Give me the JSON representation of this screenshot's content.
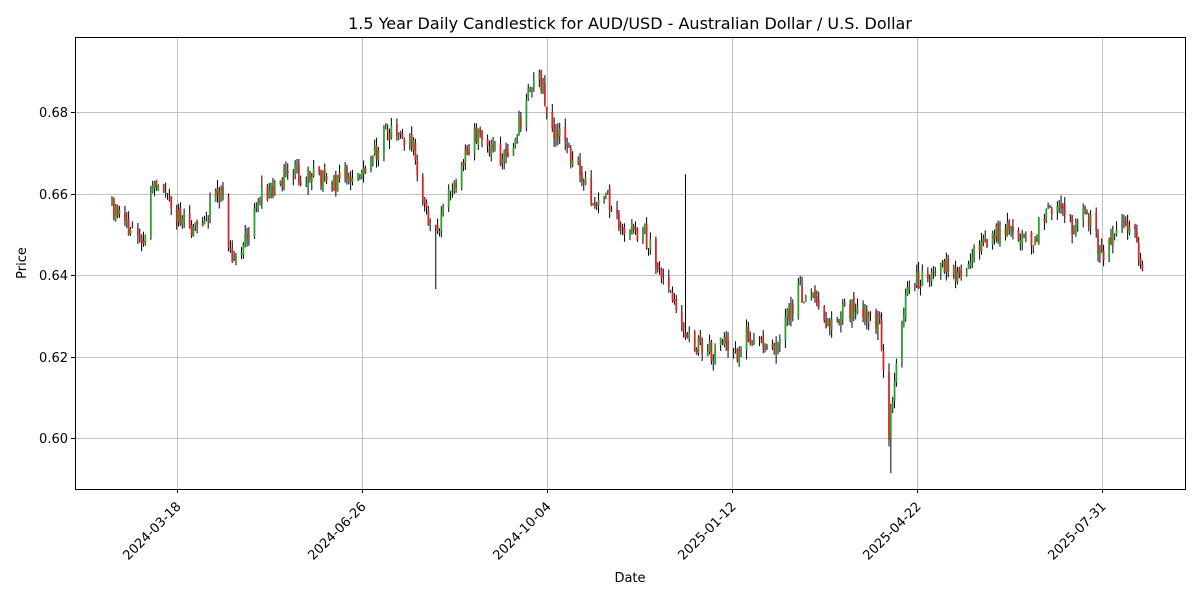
{
  "chart_data": {
    "type": "candlestick",
    "title": "1.5 Year Daily Candlestick for AUD/USD - Australian Dollar / U.S. Dollar",
    "xlabel": "Date",
    "ylabel": "Price",
    "grid": true,
    "xlim": [
      "2024-01-23",
      "2025-09-14"
    ],
    "ylim": [
      0.5875,
      0.6985
    ],
    "x_ticks": [
      "2024-03-18",
      "2024-06-26",
      "2024-10-04",
      "2025-01-12",
      "2025-04-22",
      "2025-07-31"
    ],
    "y_ticks": [
      "0.60",
      "0.62",
      "0.64",
      "0.66",
      "0.68"
    ],
    "colors": {
      "up": "#2ca02c",
      "down": "#d62728",
      "wick": "#000000",
      "grid": "#b0b0b0"
    },
    "anchors": [
      [
        "2024-02-12",
        0.657
      ],
      [
        "2024-02-16",
        0.654
      ],
      [
        "2024-02-22",
        0.652
      ],
      [
        "2024-02-29",
        0.65
      ],
      [
        "2024-03-05",
        0.661
      ],
      [
        "2024-03-11",
        0.662
      ],
      [
        "2024-03-18",
        0.654
      ],
      [
        "2024-03-25",
        0.652
      ],
      [
        "2024-04-01",
        0.653
      ],
      [
        "2024-04-08",
        0.66
      ],
      [
        "2024-04-12",
        0.659
      ],
      [
        "2024-04-17",
        0.642
      ],
      [
        "2024-04-24",
        0.648
      ],
      [
        "2024-05-03",
        0.661
      ],
      [
        "2024-05-10",
        0.661
      ],
      [
        "2024-05-17",
        0.667
      ],
      [
        "2024-05-24",
        0.664
      ],
      [
        "2024-06-03",
        0.664
      ],
      [
        "2024-06-10",
        0.662
      ],
      [
        "2024-06-17",
        0.665
      ],
      [
        "2024-06-26",
        0.665
      ],
      [
        "2024-07-08",
        0.674
      ],
      [
        "2024-07-15",
        0.676
      ],
      [
        "2024-07-24",
        0.672
      ],
      [
        "2024-08-01",
        0.652
      ],
      [
        "2024-08-05",
        0.65
      ],
      [
        "2024-08-12",
        0.659
      ],
      [
        "2024-08-19",
        0.667
      ],
      [
        "2024-08-26",
        0.675
      ],
      [
        "2024-09-02",
        0.673
      ],
      [
        "2024-09-09",
        0.668
      ],
      [
        "2024-09-16",
        0.673
      ],
      [
        "2024-09-24",
        0.684
      ],
      [
        "2024-09-30",
        0.691
      ],
      [
        "2024-10-04",
        0.678
      ],
      [
        "2024-10-11",
        0.674
      ],
      [
        "2024-10-21",
        0.667
      ],
      [
        "2024-10-30",
        0.656
      ],
      [
        "2024-11-05",
        0.66
      ],
      [
        "2024-11-12",
        0.652
      ],
      [
        "2024-11-19",
        0.651
      ],
      [
        "2024-11-26",
        0.65
      ],
      [
        "2024-12-03",
        0.642
      ],
      [
        "2024-12-10",
        0.636
      ],
      [
        "2024-12-17",
        0.626
      ],
      [
        "2024-12-24",
        0.623
      ],
      [
        "2025-01-02",
        0.621
      ],
      [
        "2025-01-08",
        0.623
      ],
      [
        "2025-01-12",
        0.619
      ],
      [
        "2025-01-20",
        0.625
      ],
      [
        "2025-01-27",
        0.625
      ],
      [
        "2025-02-03",
        0.621
      ],
      [
        "2025-02-10",
        0.628
      ],
      [
        "2025-02-17",
        0.636
      ],
      [
        "2025-02-25",
        0.634
      ],
      [
        "2025-03-04",
        0.626
      ],
      [
        "2025-03-11",
        0.63
      ],
      [
        "2025-03-18",
        0.632
      ],
      [
        "2025-03-26",
        0.63
      ],
      [
        "2025-04-02",
        0.628
      ],
      [
        "2025-04-07",
        0.601
      ],
      [
        "2025-04-11",
        0.619
      ],
      [
        "2025-04-16",
        0.634
      ],
      [
        "2025-04-22",
        0.639
      ],
      [
        "2025-04-29",
        0.64
      ],
      [
        "2025-05-06",
        0.643
      ],
      [
        "2025-05-13",
        0.641
      ],
      [
        "2025-05-20",
        0.643
      ],
      [
        "2025-05-27",
        0.647
      ],
      [
        "2025-06-03",
        0.65
      ],
      [
        "2025-06-10",
        0.651
      ],
      [
        "2025-06-17",
        0.65
      ],
      [
        "2025-06-24",
        0.649
      ],
      [
        "2025-07-01",
        0.655
      ],
      [
        "2025-07-08",
        0.657
      ],
      [
        "2025-07-15",
        0.652
      ],
      [
        "2025-07-22",
        0.656
      ],
      [
        "2025-07-31",
        0.645
      ],
      [
        "2025-08-07",
        0.652
      ],
      [
        "2025-08-14",
        0.652
      ],
      [
        "2025-08-19",
        0.648
      ],
      [
        "2025-08-22",
        0.643
      ]
    ],
    "spikes": [
      {
        "date": "2024-05-03",
        "high": 0.6645
      },
      {
        "date": "2024-08-05",
        "low": 0.6366
      },
      {
        "date": "2024-12-18",
        "high": 0.6648
      },
      {
        "date": "2025-04-08",
        "low": 0.5914
      }
    ]
  }
}
